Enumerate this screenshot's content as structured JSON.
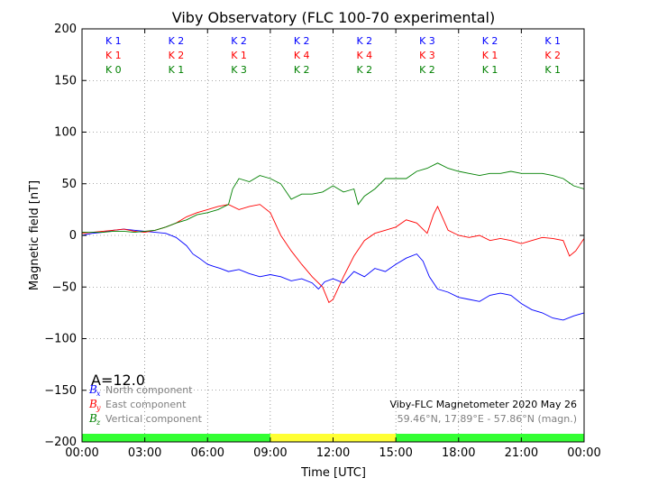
{
  "chart_data": {
    "type": "line",
    "title": "Viby Observatory (FLC 100-70 experimental)",
    "xlabel": "Time [UTC]",
    "ylabel": "Magnetic field [nT]",
    "xlim": [
      0,
      24
    ],
    "ylim": [
      -200,
      200
    ],
    "x_ticks": [
      0,
      3,
      6,
      9,
      12,
      15,
      18,
      21,
      24
    ],
    "x_tick_labels": [
      "00:00",
      "03:00",
      "06:00",
      "09:00",
      "12:00",
      "15:00",
      "18:00",
      "21:00",
      "00:00"
    ],
    "y_ticks": [
      -200,
      -150,
      -100,
      -50,
      0,
      50,
      100,
      150,
      200
    ],
    "y_tick_labels": [
      "−200",
      "−150",
      "−100",
      "−50",
      "0",
      "50",
      "100",
      "150",
      "200"
    ],
    "grid": true,
    "k_indices": [
      {
        "name": "x",
        "color": "#0000ff",
        "labels": [
          "K 1",
          "K 2",
          "K 2",
          "K 2",
          "K 2",
          "K 3",
          "K 2",
          "K 1"
        ]
      },
      {
        "name": "y",
        "color": "#ff0000",
        "labels": [
          "K 1",
          "K 2",
          "K 1",
          "K 4",
          "K 4",
          "K 3",
          "K 1",
          "K 2"
        ]
      },
      {
        "name": "z",
        "color": "#008000",
        "labels": [
          "K 0",
          "K 1",
          "K 3",
          "K 2",
          "K 2",
          "K 2",
          "K 1",
          "K 1"
        ]
      }
    ],
    "activity_bar": [
      {
        "start": 0,
        "end": 9,
        "color": "#33ff33"
      },
      {
        "start": 9,
        "end": 15,
        "color": "#ffff33"
      },
      {
        "start": 15,
        "end": 24,
        "color": "#33ff33"
      }
    ],
    "series": [
      {
        "key": "bx",
        "color": "#0000ff",
        "legend_symbol": "B",
        "legend_sub": "x",
        "legend_label": "North component",
        "x": [
          0,
          0.5,
          1,
          1.5,
          2,
          2.5,
          3,
          3.5,
          4,
          4.5,
          5,
          5.3,
          5.6,
          6,
          6.3,
          6.6,
          7,
          7.5,
          8,
          8.5,
          9,
          9.5,
          10,
          10.5,
          11,
          11.3,
          11.6,
          12,
          12.5,
          13,
          13.5,
          14,
          14.5,
          15,
          15.5,
          16,
          16.3,
          16.6,
          17,
          17.5,
          18,
          18.5,
          19,
          19.5,
          20,
          20.5,
          21,
          21.5,
          22,
          22.5,
          23,
          23.5,
          24
        ],
        "values": [
          0,
          2,
          3,
          5,
          6,
          5,
          4,
          3,
          2,
          -2,
          -10,
          -18,
          -22,
          -28,
          -30,
          -32,
          -35,
          -33,
          -37,
          -40,
          -38,
          -40,
          -44,
          -42,
          -46,
          -52,
          -45,
          -42,
          -46,
          -35,
          -40,
          -32,
          -35,
          -28,
          -22,
          -18,
          -25,
          -40,
          -52,
          -55,
          -60,
          -62,
          -64,
          -58,
          -56,
          -58,
          -66,
          -72,
          -75,
          -80,
          -82,
          -78,
          -75
        ]
      },
      {
        "key": "by",
        "color": "#ff0000",
        "legend_symbol": "B",
        "legend_sub": "y",
        "legend_label": "East component",
        "x": [
          0,
          0.5,
          1,
          1.5,
          2,
          2.5,
          3,
          3.5,
          4,
          4.5,
          5,
          5.5,
          6,
          6.5,
          7,
          7.5,
          8,
          8.5,
          9,
          9.5,
          10,
          10.5,
          11,
          11.5,
          11.8,
          12,
          12.5,
          13,
          13.5,
          14,
          14.5,
          15,
          15.5,
          16,
          16.5,
          16.8,
          17,
          17.5,
          18,
          18.5,
          19,
          19.5,
          20,
          20.5,
          21,
          21.5,
          22,
          22.5,
          23,
          23.3,
          23.6,
          24
        ],
        "values": [
          2,
          3,
          4,
          5,
          6,
          4,
          3,
          5,
          8,
          12,
          18,
          22,
          25,
          28,
          30,
          25,
          28,
          30,
          22,
          0,
          -15,
          -28,
          -40,
          -50,
          -65,
          -62,
          -40,
          -20,
          -5,
          2,
          5,
          8,
          15,
          12,
          2,
          20,
          28,
          5,
          0,
          -2,
          0,
          -5,
          -3,
          -5,
          -8,
          -5,
          -2,
          -3,
          -5,
          -20,
          -15,
          -3
        ]
      },
      {
        "key": "bz",
        "color": "#008000",
        "legend_symbol": "B",
        "legend_sub": "z",
        "legend_label": "Vertical component",
        "x": [
          0,
          0.5,
          1,
          1.5,
          2,
          2.5,
          3,
          3.5,
          4,
          4.5,
          5,
          5.5,
          6,
          6.5,
          7,
          7.2,
          7.5,
          8,
          8.5,
          9,
          9.5,
          10,
          10.5,
          11,
          11.5,
          12,
          12.5,
          13,
          13.2,
          13.5,
          14,
          14.5,
          15,
          15.5,
          16,
          16.5,
          17,
          17.5,
          18,
          18.5,
          19,
          19.5,
          20,
          20.5,
          21,
          21.5,
          22,
          22.5,
          23,
          23.5,
          24
        ],
        "values": [
          3,
          3,
          3,
          4,
          4,
          3,
          4,
          5,
          8,
          12,
          15,
          20,
          22,
          25,
          30,
          45,
          55,
          52,
          58,
          55,
          50,
          35,
          40,
          40,
          42,
          48,
          42,
          45,
          30,
          38,
          45,
          55,
          55,
          55,
          62,
          65,
          70,
          65,
          62,
          60,
          58,
          60,
          60,
          62,
          60,
          60,
          60,
          58,
          55,
          48,
          45
        ]
      }
    ],
    "a_index": "A=12.0",
    "info_line1": "Viby-FLC Magnetometer 2020 May 26",
    "info_line2": "59.46°N, 17.89°E - 57.86°N (magn.)"
  }
}
